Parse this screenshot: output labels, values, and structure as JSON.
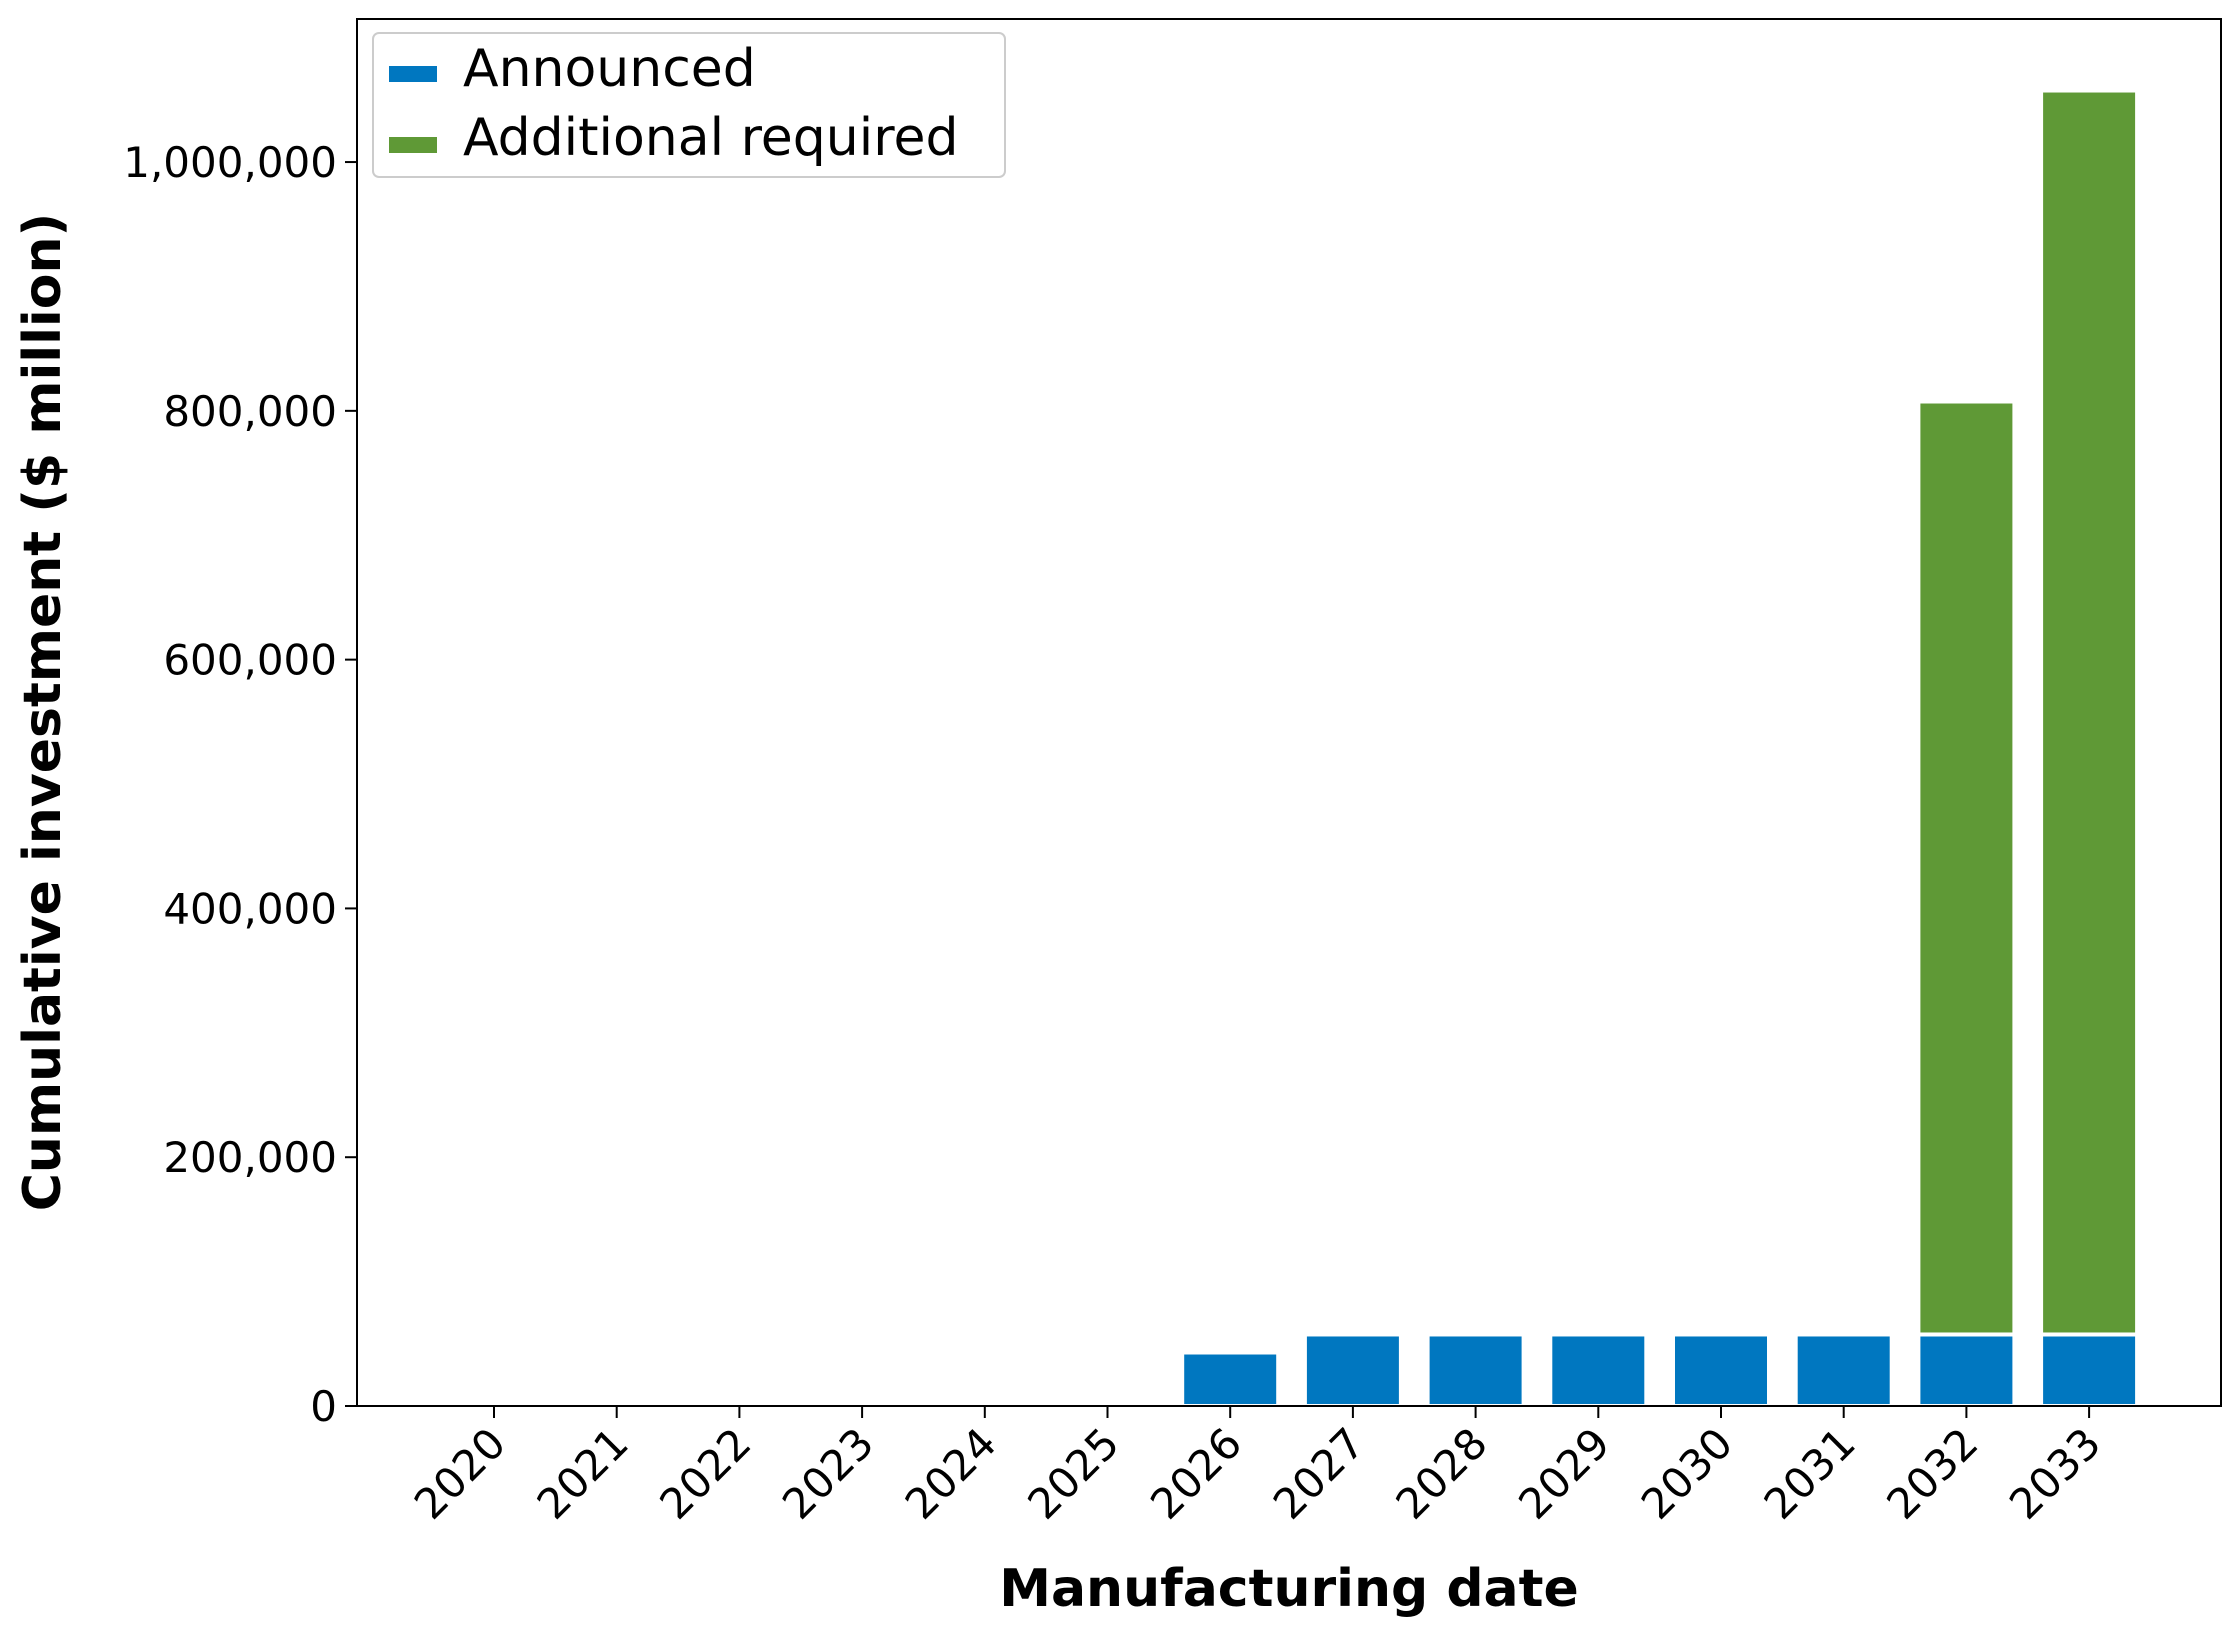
{
  "chart_data": {
    "type": "bar",
    "stacked": true,
    "categories": [
      "2020",
      "2021",
      "2022",
      "2023",
      "2024",
      "2025",
      "2026",
      "2027",
      "2028",
      "2029",
      "2030",
      "2031",
      "2032",
      "2033"
    ],
    "series": [
      {
        "name": "Announced",
        "color": "#0077C0",
        "values": [
          0,
          0,
          0,
          0,
          0,
          0,
          43000,
          57500,
          57500,
          57500,
          57500,
          57500,
          57500,
          57500
        ]
      },
      {
        "name": "Additional required",
        "color": "#5F9936",
        "values": [
          0,
          0,
          0,
          0,
          0,
          0,
          0,
          0,
          0,
          0,
          0,
          0,
          750000,
          1000000
        ]
      }
    ],
    "title": "",
    "xlabel": "Manufacturing date",
    "ylabel": "Cumulative investment ($ million)",
    "ylim": [
      0,
      1115000
    ],
    "yticks": [
      0,
      200000,
      400000,
      600000,
      800000,
      1000000
    ],
    "ytick_labels": [
      "0",
      "200,000",
      "400,000",
      "600,000",
      "800,000",
      "1,000,000"
    ],
    "grid": false,
    "legend_position": "top-left"
  }
}
